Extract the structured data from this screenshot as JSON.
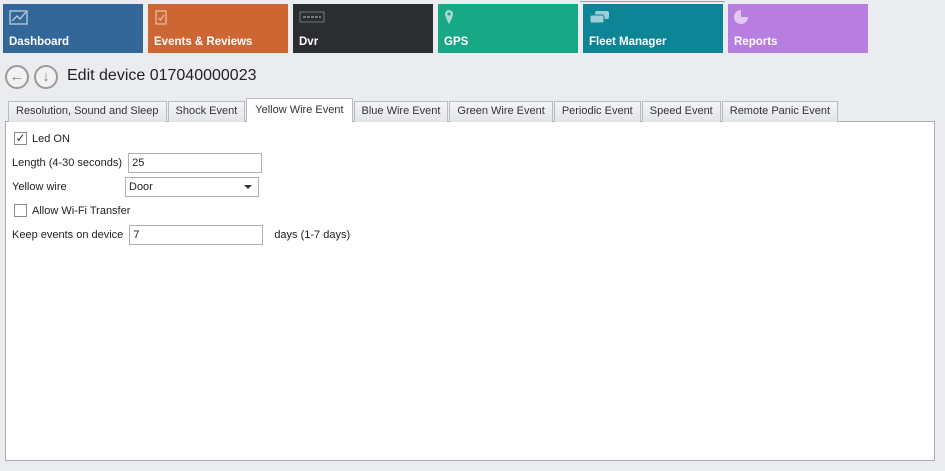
{
  "tiles": [
    {
      "label": "Dashboard",
      "icon": "chart-line-icon",
      "color": "#336699"
    },
    {
      "label": "Events & Reviews",
      "icon": "clipboard-check-icon",
      "color": "#cc6633"
    },
    {
      "label": "Dvr",
      "icon": "dvr-icon",
      "color": "#2b2d31"
    },
    {
      "label": "GPS",
      "icon": "map-pin-icon",
      "color": "#19a886"
    },
    {
      "label": "Fleet Manager",
      "icon": "cars-icon",
      "color": "#0e8597"
    },
    {
      "label": "Reports",
      "icon": "pie-chart-icon",
      "color": "#b77ee0"
    }
  ],
  "header": {
    "title": "Edit device 017040000023"
  },
  "tabs": [
    "Resolution, Sound and Sleep",
    "Shock Event",
    "Yellow Wire Event",
    "Blue Wire Event",
    "Green Wire Event",
    "Periodic Event",
    "Speed Event",
    "Remote Panic Event"
  ],
  "active_tab": "Yellow Wire Event",
  "form": {
    "led_label": "Led ON",
    "led_checked": true,
    "length_label": "Length (4-30 seconds)",
    "length_value": "25",
    "wire_label": "Yellow wire",
    "wire_value": "Door",
    "wifi_label": "Allow Wi-Fi Transfer",
    "wifi_checked": false,
    "keep_label": "Keep events on device",
    "keep_value": "7",
    "keep_suffix": "days (1-7 days)"
  }
}
